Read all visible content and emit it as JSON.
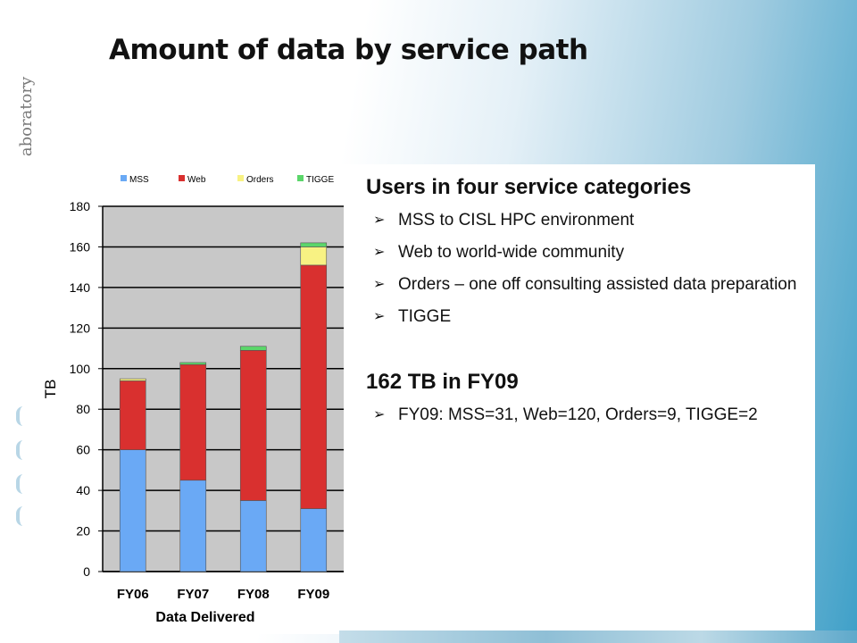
{
  "slide": {
    "title": "Amount of data by service path",
    "side_logo_text": "aboratory"
  },
  "text_panel": {
    "heading1": "Users in four service categories",
    "bullets1": [
      "MSS to CISL HPC environment",
      "Web to world-wide community",
      "Orders – one off consulting assisted data preparation",
      "TIGGE"
    ],
    "heading2": "162 TB in FY09",
    "bullets2": [
      "FY09: MSS=31, Web=120, Orders=9, TIGGE=2"
    ],
    "bullet_glyph": "➢"
  },
  "chart_data": {
    "type": "bar",
    "stacked": true,
    "categories": [
      "FY06",
      "FY07",
      "FY08",
      "FY09"
    ],
    "series": [
      {
        "name": "MSS",
        "color": "#6aa9f5",
        "values": [
          60,
          45,
          35,
          31
        ]
      },
      {
        "name": "Web",
        "color": "#d9302f",
        "values": [
          34,
          57,
          74,
          120
        ]
      },
      {
        "name": "Orders",
        "color": "#f8f283",
        "values": [
          1,
          0,
          0,
          9
        ]
      },
      {
        "name": "TIGGE",
        "color": "#5bd66a",
        "values": [
          0,
          1,
          2,
          2
        ]
      }
    ],
    "xlabel": "Data Delivered",
    "ylabel": "TB",
    "ylim": [
      0,
      180
    ],
    "yticks": [
      0,
      20,
      40,
      60,
      80,
      100,
      120,
      140,
      160,
      180
    ],
    "grid": true,
    "legend": "top",
    "plot_background": "#c8c8c8"
  }
}
